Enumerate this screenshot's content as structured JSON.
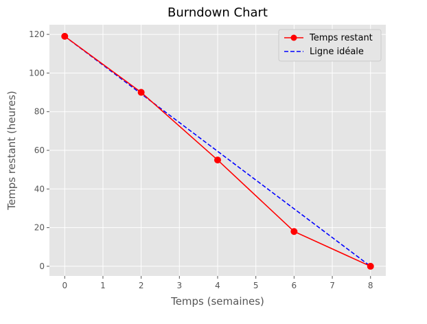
{
  "chart_data": {
    "type": "line",
    "title": "Burndown Chart",
    "xlabel": "Temps (semaines)",
    "ylabel": "Temps restant (heures)",
    "xlim": [
      -0.4,
      8.4
    ],
    "ylim": [
      -5,
      125
    ],
    "xticks": [
      0,
      1,
      2,
      3,
      4,
      5,
      6,
      7,
      8
    ],
    "yticks": [
      0,
      20,
      40,
      60,
      80,
      100,
      120
    ],
    "grid": true,
    "legend_position": "top-right",
    "series": [
      {
        "name": "Temps restant",
        "color": "#ff0000",
        "style": "solid",
        "marker": "circle",
        "x": [
          0,
          2,
          4,
          6,
          8
        ],
        "y": [
          119,
          90,
          55,
          18,
          0
        ]
      },
      {
        "name": "Ligne idéale",
        "color": "#0000ff",
        "style": "dashed",
        "marker": "none",
        "x": [
          0,
          8
        ],
        "y": [
          119,
          0
        ]
      }
    ]
  }
}
